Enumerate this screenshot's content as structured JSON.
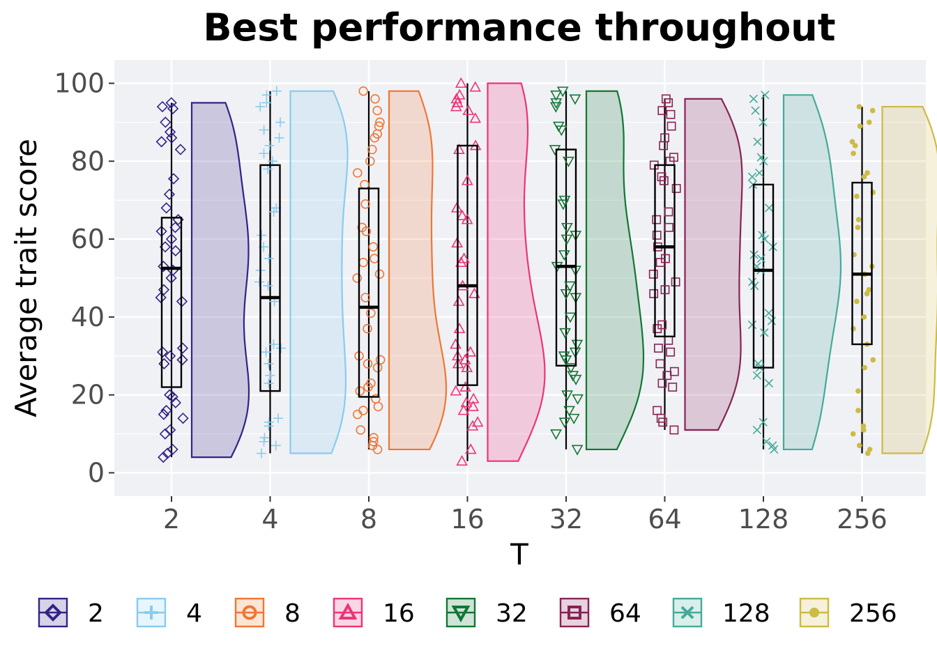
{
  "chart_data": {
    "type": "raincloud",
    "title": "Best performance throughout",
    "xlabel": "T",
    "ylabel": "Average trait score",
    "categories": [
      "2",
      "4",
      "8",
      "16",
      "32",
      "64",
      "128",
      "256"
    ],
    "ylim": [
      -6,
      106
    ],
    "yticks": [
      0,
      20,
      40,
      60,
      80,
      100
    ],
    "grid": true,
    "legend_position": "bottom",
    "legend_title": "",
    "series": [
      {
        "name": "2",
        "color": "#332288",
        "marker": "diamond",
        "box": {
          "min": 4,
          "q1": 22,
          "median": 52.5,
          "q3": 65.5,
          "max": 95
        },
        "points": [
          95,
          93.5,
          94,
          90,
          87.5,
          86,
          85,
          83,
          75.5,
          71.5,
          68,
          65,
          63,
          62,
          60,
          58,
          57,
          53,
          52,
          50,
          47,
          45,
          44,
          32,
          31,
          30,
          29,
          28,
          20,
          19.5,
          18,
          16,
          15,
          14,
          11,
          10,
          6,
          5,
          4
        ]
      },
      {
        "name": "4",
        "color": "#88CCEE",
        "marker": "plus",
        "box": {
          "min": 5,
          "q1": 21,
          "median": 45,
          "q3": 79,
          "max": 98
        },
        "points": [
          98,
          97,
          95,
          94,
          90,
          88,
          86,
          84,
          82,
          80,
          78,
          68,
          67,
          61,
          58,
          55,
          52,
          49,
          48,
          44,
          33,
          32,
          31,
          28,
          25,
          23,
          14,
          13,
          12,
          9,
          8,
          7,
          5
        ]
      },
      {
        "name": "8",
        "color": "#EE7733",
        "marker": "circle-open",
        "box": {
          "min": 6,
          "q1": 19.5,
          "median": 42.5,
          "q3": 73,
          "max": 98
        },
        "points": [
          98,
          96,
          93,
          90,
          89,
          87,
          86,
          83,
          80,
          77,
          74,
          69,
          63,
          62,
          58,
          55,
          54,
          51,
          50,
          45,
          41,
          37,
          30,
          29,
          28,
          27,
          23,
          22,
          21,
          19,
          17,
          16,
          15,
          11,
          9,
          8,
          7,
          6
        ]
      },
      {
        "name": "16",
        "color": "#EE3377",
        "marker": "triangle-up",
        "box": {
          "min": 3,
          "q1": 22.5,
          "median": 48,
          "q3": 84,
          "max": 100
        },
        "points": [
          100,
          99,
          97,
          96,
          95,
          94,
          93,
          91,
          84,
          83,
          75,
          68,
          66,
          65,
          59,
          55,
          54,
          48,
          46,
          44,
          37,
          33,
          31,
          30,
          29,
          28,
          27,
          22,
          21,
          19,
          18,
          17,
          16,
          13,
          12,
          6,
          3
        ]
      },
      {
        "name": "32",
        "color": "#117733",
        "marker": "triangle-down",
        "box": {
          "min": 6,
          "q1": 27.5,
          "median": 53,
          "q3": 83,
          "max": 98
        },
        "points": [
          98,
          97,
          96,
          95,
          94,
          89,
          88,
          83,
          80,
          70,
          69,
          63,
          61,
          60,
          56,
          53,
          52,
          48,
          46,
          45,
          40,
          36,
          33,
          31,
          30,
          29,
          27,
          25,
          24,
          20,
          19,
          16,
          14,
          13,
          10,
          6
        ]
      },
      {
        "name": "64",
        "color": "#882255",
        "marker": "square",
        "box": {
          "min": 11,
          "q1": 35,
          "median": 58,
          "q3": 79,
          "max": 96
        },
        "points": [
          96,
          95,
          93,
          92,
          89,
          86,
          84,
          81,
          80,
          79,
          76,
          75,
          73,
          67,
          65,
          63,
          61,
          58,
          55,
          54,
          51,
          49,
          47,
          46,
          38,
          37,
          34,
          32,
          31,
          28,
          26,
          25,
          23,
          22,
          16,
          14,
          13,
          11
        ]
      },
      {
        "name": "128",
        "color": "#44AA99",
        "marker": "x",
        "box": {
          "min": 6,
          "q1": 27,
          "median": 52,
          "q3": 74,
          "max": 97
        },
        "points": [
          97,
          96,
          93,
          90,
          85,
          81,
          80,
          77,
          76,
          74,
          68,
          61,
          60,
          58,
          56,
          55,
          53,
          52,
          49,
          48,
          41,
          39,
          38,
          36,
          28,
          27,
          25,
          23,
          13,
          11,
          8,
          7,
          6
        ]
      },
      {
        "name": "256",
        "color": "#CCBB44",
        "marker": "dot",
        "box": {
          "min": 5,
          "q1": 33,
          "median": 51,
          "q3": 74.5,
          "max": 94
        },
        "points": [
          94,
          93,
          90,
          89,
          85,
          84,
          82,
          77,
          76,
          72,
          71,
          65,
          63,
          56,
          53,
          51,
          47,
          46,
          44,
          40,
          37,
          33,
          29,
          27,
          21,
          16,
          12,
          11,
          10,
          7,
          6,
          5
        ]
      }
    ]
  }
}
